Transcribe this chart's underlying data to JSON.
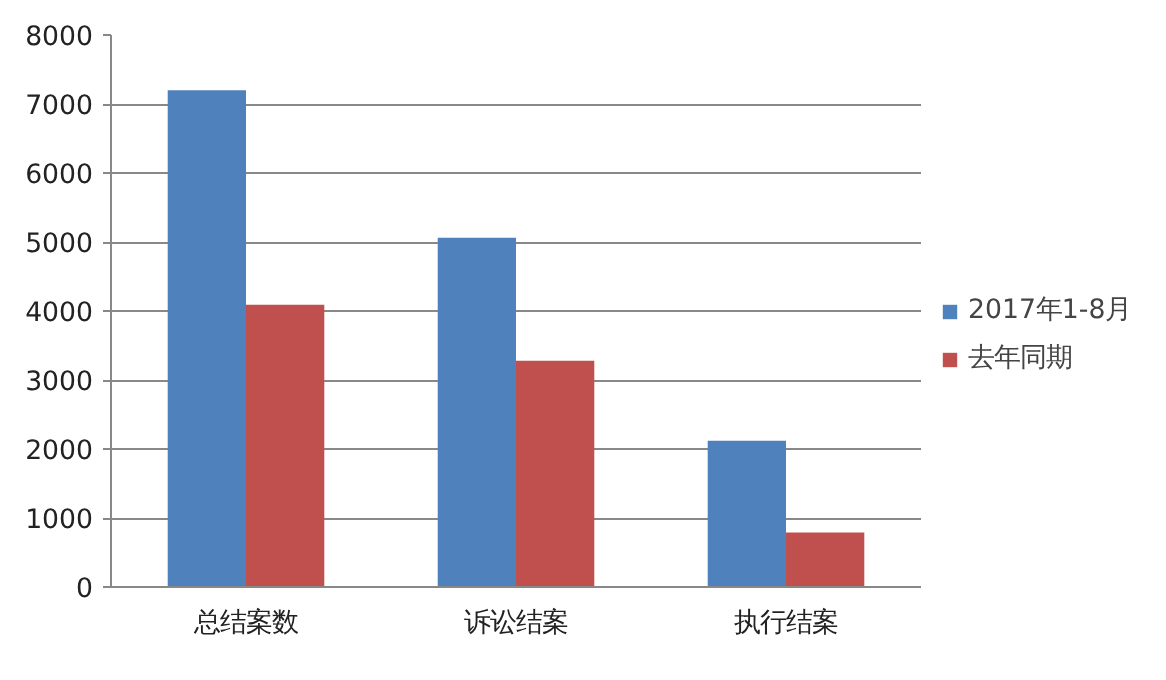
{
  "chart_data": {
    "type": "bar",
    "categories": [
      "总结案数",
      "诉讼结案",
      "执行结案"
    ],
    "series": [
      {
        "name": "2017年1-8月",
        "color": "#4f81bd",
        "values": [
          7200,
          5060,
          2120
        ]
      },
      {
        "name": "去年同期",
        "color": "#c0504d",
        "values": [
          4090,
          3280,
          790
        ]
      }
    ],
    "ylim": [
      0,
      8000
    ],
    "yticks": [
      0,
      1000,
      2000,
      3000,
      4000,
      5000,
      6000,
      7000,
      8000
    ],
    "grid": "y",
    "legend": "right"
  }
}
